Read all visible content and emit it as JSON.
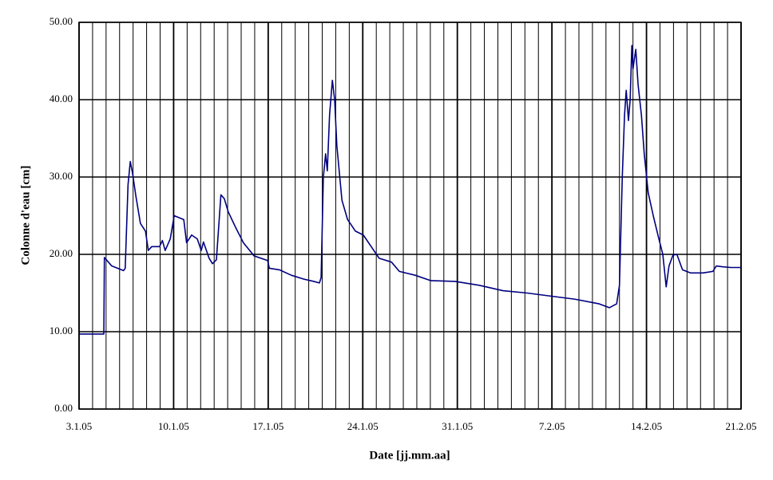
{
  "chart_data": {
    "type": "line",
    "x_label": "Date [jj.mm.aa]",
    "y_label": "Colonne d'eau [cm]",
    "x": [
      "2005-01-03T00:00",
      "2005-01-04T20:00",
      "2005-01-04T21:00",
      "2005-01-05T10:00",
      "2005-01-06T07:00",
      "2005-01-06T10:00",
      "2005-01-06T15:00",
      "2005-01-06T19:00",
      "2005-01-06T23:00",
      "2005-01-07T05:00",
      "2005-01-07T13:00",
      "2005-01-07T22:00",
      "2005-01-08T03:00",
      "2005-01-08T09:00",
      "2005-01-08T23:00",
      "2005-01-09T04:00",
      "2005-01-09T09:00",
      "2005-01-09T18:00",
      "2005-01-10T01:00",
      "2005-01-10T11:00",
      "2005-01-10T18:00",
      "2005-01-10T23:00",
      "2005-01-11T08:00",
      "2005-01-11T18:00",
      "2005-01-12T01:00",
      "2005-01-12T05:00",
      "2005-01-12T15:00",
      "2005-01-12T21:00",
      "2005-01-13T04:00",
      "2005-01-13T12:00",
      "2005-01-13T18:00",
      "2005-01-14T01:00",
      "2005-01-14T14:00",
      "2005-01-15T04:00",
      "2005-01-15T23:00",
      "2005-01-16T23:00",
      "2005-01-17T02:00",
      "2005-01-17T20:00",
      "2005-01-18T17:00",
      "2005-01-19T15:00",
      "2005-01-20T09:00",
      "2005-01-20T19:00",
      "2005-01-20T22:00",
      "2005-01-21T02:00",
      "2005-01-21T06:00",
      "2005-01-21T09:00",
      "2005-01-21T13:00",
      "2005-01-21T18:00",
      "2005-01-21T22:00",
      "2005-01-22T02:00",
      "2005-01-22T11:00",
      "2005-01-22T21:00",
      "2005-01-23T11:00",
      "2005-01-24T01:00",
      "2005-01-24T15:00",
      "2005-01-25T05:00",
      "2005-01-26T03:00",
      "2005-01-26T17:00",
      "2005-01-27T21:00",
      "2005-01-29T01:00",
      "2005-01-30T20:00",
      "2005-02-01T15:00",
      "2005-02-03T09:00",
      "2005-02-05T04:00",
      "2005-02-06T22:00",
      "2005-02-08T17:00",
      "2005-02-10T12:00",
      "2005-02-11T06:00",
      "2005-02-11T19:00",
      "2005-02-12T00:00",
      "2005-02-12T05:00",
      "2005-02-12T09:00",
      "2005-02-12T12:00",
      "2005-02-12T16:00",
      "2005-02-12T19:00",
      "2005-02-12T22:00",
      "2005-02-13T00:00",
      "2005-02-13T05:00",
      "2005-02-13T09:00",
      "2005-02-13T15:00",
      "2005-02-13T20:00",
      "2005-02-14T03:00",
      "2005-02-14T12:00",
      "2005-02-14T22:00",
      "2005-02-15T05:00",
      "2005-02-15T11:00",
      "2005-02-15T16:00",
      "2005-02-15T23:00",
      "2005-02-16T06:00",
      "2005-02-16T16:00",
      "2005-02-17T06:00",
      "2005-02-18T04:00",
      "2005-02-18T22:00",
      "2005-02-19T04:00",
      "2005-02-19T15:00",
      "2005-02-20T06:00",
      "2005-02-21T00:00"
    ],
    "series": [
      {
        "name": "Colonne d'eau",
        "color": "#000080",
        "values": [
          9.7,
          9.7,
          19.6,
          18.5,
          17.9,
          18.2,
          29,
          32,
          30.5,
          27.5,
          24,
          23,
          20.5,
          21,
          21,
          21.8,
          20.5,
          22,
          25,
          24.7,
          24.5,
          21.5,
          22.5,
          22,
          20.5,
          21.6,
          19.5,
          18.8,
          19.3,
          27.7,
          27.2,
          25.5,
          23.5,
          21.5,
          19.8,
          19.2,
          18.2,
          18,
          17.3,
          16.8,
          16.5,
          16.3,
          17,
          30,
          33,
          30.8,
          38,
          42.5,
          40,
          34,
          27,
          24.5,
          23,
          22.5,
          21,
          19.5,
          19,
          17.8,
          17.3,
          16.6,
          16.5,
          16,
          15.3,
          15,
          14.6,
          14.2,
          13.6,
          13.1,
          13.6,
          16,
          30,
          38,
          41.2,
          37.3,
          40,
          47,
          44,
          46.5,
          42,
          38,
          33,
          28,
          25,
          22,
          20,
          15.8,
          18.5,
          19.9,
          20,
          18,
          17.6,
          17.6,
          17.8,
          18.5,
          18.4,
          18.3,
          18.3
        ]
      }
    ],
    "xlim": [
      "2005-01-03T00:00",
      "2005-02-21T00:00"
    ],
    "xticks": [
      {
        "value": "2005-01-03T00:00",
        "label": "3.1.05"
      },
      {
        "value": "2005-01-10T00:00",
        "label": "10.1.05"
      },
      {
        "value": "2005-01-17T00:00",
        "label": "17.1.05"
      },
      {
        "value": "2005-01-24T00:00",
        "label": "24.1.05"
      },
      {
        "value": "2005-01-31T00:00",
        "label": "31.1.05"
      },
      {
        "value": "2005-02-07T00:00",
        "label": "7.2.05"
      },
      {
        "value": "2005-02-14T00:00",
        "label": "14.2.05"
      },
      {
        "value": "2005-02-21T00:00",
        "label": "21.2.05"
      }
    ],
    "ylim": [
      0,
      50
    ],
    "yticks": [
      {
        "value": 0,
        "label": "0.00"
      },
      {
        "value": 10,
        "label": "10.00"
      },
      {
        "value": 20,
        "label": "20.00"
      },
      {
        "value": 30,
        "label": "30.00"
      },
      {
        "value": 40,
        "label": "40.00"
      },
      {
        "value": 50,
        "label": "50.00"
      }
    ],
    "grid": true,
    "minor_grid": "day"
  }
}
